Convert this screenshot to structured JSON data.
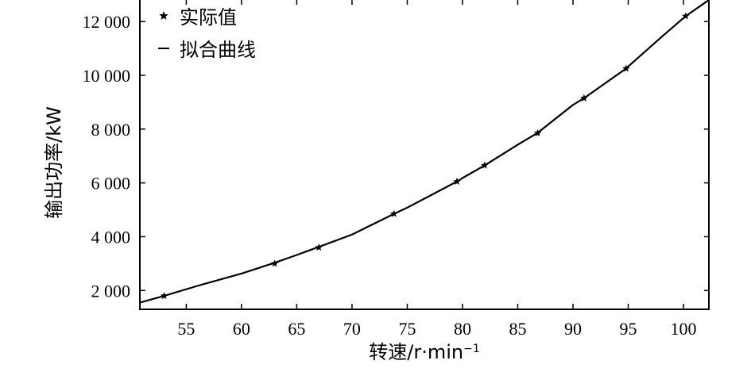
{
  "chart_data": {
    "type": "line",
    "title": "",
    "xlabel": "转速/r·min",
    "xlabel_superscript": "−1",
    "ylabel": "输出功率/kW",
    "xlim": [
      50.8,
      102.3
    ],
    "ylim": [
      1300,
      12800
    ],
    "x_ticks": [
      55,
      60,
      65,
      70,
      75,
      80,
      85,
      90,
      95,
      100
    ],
    "x_tick_labels": [
      "55",
      "60",
      "65",
      "70",
      "75",
      "80",
      "85",
      "90",
      "95",
      "100"
    ],
    "y_ticks": [
      2000,
      4000,
      6000,
      8000,
      10000,
      12000
    ],
    "y_tick_labels": [
      "2 000",
      "4 000",
      "6 000",
      "8 000",
      "10 000",
      "12 000"
    ],
    "grid": false,
    "legend": {
      "position": "top-left",
      "entries": [
        "实际值",
        "拟合曲线"
      ]
    },
    "series": [
      {
        "name": "实际值",
        "kind": "scatter",
        "marker": "star",
        "x": [
          53.0,
          63.0,
          67.0,
          73.8,
          79.5,
          82.0,
          86.8,
          91.0,
          94.8,
          100.2
        ],
        "y": [
          1800,
          3000,
          3600,
          4850,
          6050,
          6650,
          7850,
          9150,
          10250,
          12200
        ]
      },
      {
        "name": "拟合曲线",
        "kind": "line",
        "x": [
          50.8,
          53,
          56,
          60,
          63,
          65,
          67,
          70,
          73.8,
          75,
          79.5,
          80,
          82,
          85,
          86.8,
          90,
          91,
          94.8,
          95,
          98,
          100.2,
          102.3
        ],
        "y": [
          1550,
          1800,
          2170,
          2630,
          3030,
          3320,
          3620,
          4080,
          4850,
          5080,
          6050,
          6180,
          6650,
          7420,
          7860,
          8900,
          9150,
          10250,
          10330,
          11420,
          12200,
          12800
        ]
      }
    ]
  }
}
